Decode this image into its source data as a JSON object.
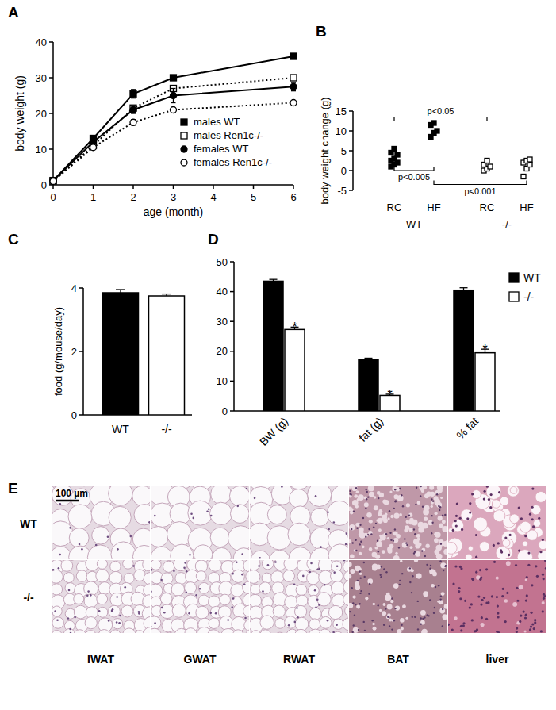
{
  "chart_data": [
    {
      "type": "line",
      "title": "A",
      "x_label": "age (month)",
      "y_label": "body weight (g)",
      "x": [
        0,
        1,
        2,
        3,
        6
      ],
      "xlim": [
        0,
        6
      ],
      "xticks": [
        0,
        1,
        2,
        3,
        4,
        5,
        6
      ],
      "ylim": [
        0,
        40
      ],
      "yticks": [
        0,
        10,
        20,
        30,
        40
      ],
      "legend": "right",
      "series": [
        {
          "name": "males WT",
          "color": "#000000",
          "marker": "square",
          "line_style": "solid",
          "values": [
            1.2,
            13,
            25.5,
            30,
            36
          ],
          "errors": [
            0.2,
            0.6,
            1.2,
            0.6,
            0.6
          ]
        },
        {
          "name": "males Ren1c-/-",
          "color": "#000000",
          "marker": "open-square",
          "line_style": "dotted",
          "values": [
            1.1,
            11,
            21.5,
            27,
            30
          ],
          "errors": [
            0.2,
            0.5,
            0.8,
            0.8,
            0.5
          ]
        },
        {
          "name": "females WT",
          "color": "#000000",
          "marker": "circle",
          "line_style": "solid",
          "values": [
            1.2,
            12,
            21,
            25,
            27.5
          ],
          "errors": [
            0.2,
            0.5,
            1,
            2,
            1.2
          ]
        },
        {
          "name": "females Ren1c-/-",
          "color": "#000000",
          "marker": "open-circle",
          "line_style": "dotted",
          "values": [
            1,
            10.5,
            17.5,
            21,
            23
          ],
          "errors": [
            0.2,
            0.4,
            0.8,
            0.5,
            0.5
          ]
        }
      ]
    },
    {
      "type": "strip",
      "title": "B",
      "y_label": "body weight change (g)",
      "categories": [
        "RC",
        "HF",
        "RC",
        "HF"
      ],
      "groups": [
        {
          "label": "WT",
          "categories": [
            0,
            1
          ]
        },
        {
          "label": "-/-",
          "categories": [
            2,
            3
          ]
        }
      ],
      "ylim": [
        -5,
        15
      ],
      "yticks": [
        -5,
        0,
        5,
        10,
        15
      ],
      "series": [
        {
          "color": "#000000",
          "marker": "square",
          "values": [
            [
              1,
              1.5,
              2,
              2.5,
              3,
              4,
              4.5,
              5.5
            ],
            [
              8.5,
              9.5,
              10,
              11.5,
              12
            ],
            null,
            null
          ]
        },
        {
          "color": "#000000",
          "marker": "open-square",
          "values": [
            null,
            null,
            [
              0,
              0.5,
              1,
              1.5,
              2.5
            ],
            [
              -1.5,
              0.5,
              1.5,
              2,
              2.5,
              2.8
            ]
          ]
        }
      ],
      "annotations": [
        {
          "text": "p<0.05",
          "between": [
            0,
            2
          ],
          "y": 13.5
        },
        {
          "text": "p<0.005",
          "between": [
            0,
            1
          ],
          "y": 0
        },
        {
          "text": "p<0.001",
          "between": [
            1,
            3
          ],
          "y": -3.5
        }
      ]
    },
    {
      "type": "bar",
      "title": "C",
      "y_label": "food (g/mouse/day)",
      "categories": [
        "WT",
        "-/-"
      ],
      "values": [
        3.85,
        3.75
      ],
      "errors": [
        0.1,
        0.06
      ],
      "colors": [
        "#000000",
        "#ffffff"
      ],
      "ylim": [
        0,
        4
      ],
      "yticks": [
        0,
        2,
        4
      ]
    },
    {
      "type": "bar",
      "title": "D",
      "categories": [
        "BW (g)",
        "fat (g)",
        "% fat"
      ],
      "ylim": [
        0,
        50
      ],
      "yticks": [
        0,
        10,
        20,
        30,
        40,
        50
      ],
      "legend": "right",
      "series": [
        {
          "name": "WT",
          "color": "#000000",
          "values": [
            43.5,
            17.2,
            40.5
          ],
          "errors": [
            0.6,
            0.5,
            0.8
          ]
        },
        {
          "name": "-/-",
          "color": "#ffffff",
          "values": [
            27.3,
            5.2,
            19.5
          ],
          "errors": [
            0.8,
            0.4,
            1.2
          ],
          "annotations": [
            "*",
            "*",
            "*"
          ]
        }
      ]
    }
  ],
  "histology": {
    "title": "E",
    "scale_bar": "100 µm",
    "row_labels": [
      "WT",
      "-/-"
    ],
    "column_labels": [
      "IWAT",
      "GWAT",
      "RWAT",
      "BAT",
      "liver"
    ]
  }
}
